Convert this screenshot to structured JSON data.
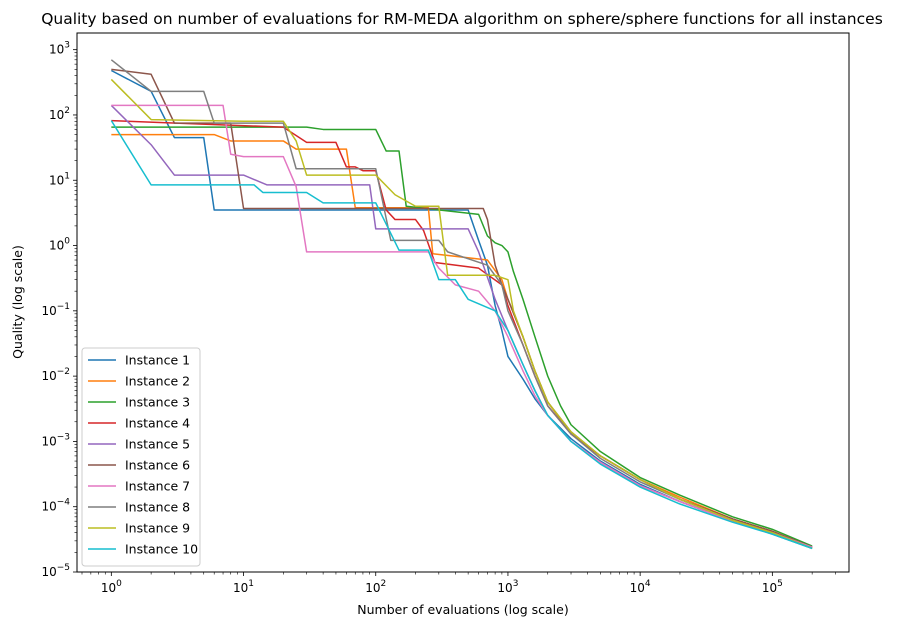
{
  "chart_data": {
    "type": "line",
    "title": "Quality based on number of evaluations for RM-MEDA algorithm on sphere/sphere functions for all instances",
    "xlabel": "Number of evaluations (log scale)",
    "ylabel": "Quality (log scale)",
    "xscale": "log",
    "yscale": "log",
    "xlim": [
      0.55,
      380000
    ],
    "ylim": [
      1e-05,
      1800
    ],
    "x_ticks": [
      {
        "value": 1,
        "base": "10",
        "exp": "0"
      },
      {
        "value": 10,
        "base": "10",
        "exp": "1"
      },
      {
        "value": 100,
        "base": "10",
        "exp": "2"
      },
      {
        "value": 1000,
        "base": "10",
        "exp": "3"
      },
      {
        "value": 10000,
        "base": "10",
        "exp": "4"
      },
      {
        "value": 100000,
        "base": "10",
        "exp": "5"
      }
    ],
    "y_ticks": [
      {
        "value": 1e-05,
        "base": "10",
        "exp": "−5"
      },
      {
        "value": 0.0001,
        "base": "10",
        "exp": "−4"
      },
      {
        "value": 0.001,
        "base": "10",
        "exp": "−3"
      },
      {
        "value": 0.01,
        "base": "10",
        "exp": "−2"
      },
      {
        "value": 0.1,
        "base": "10",
        "exp": "−1"
      },
      {
        "value": 1,
        "base": "10",
        "exp": "0"
      },
      {
        "value": 10,
        "base": "10",
        "exp": "1"
      },
      {
        "value": 100,
        "base": "10",
        "exp": "2"
      },
      {
        "value": 1000,
        "base": "10",
        "exp": "3"
      }
    ],
    "grid": false,
    "legend_position": "lower-left",
    "series": [
      {
        "name": "Instance 1",
        "color": "#1f77b4",
        "points": [
          [
            1,
            480
          ],
          [
            2,
            230
          ],
          [
            3,
            45
          ],
          [
            5,
            45
          ],
          [
            6,
            3.5
          ],
          [
            500,
            3.5
          ],
          [
            600,
            1.2
          ],
          [
            700,
            0.5
          ],
          [
            800,
            0.12
          ],
          [
            900,
            0.05
          ],
          [
            1000,
            0.02
          ],
          [
            1300,
            0.009
          ],
          [
            1600,
            0.0045
          ],
          [
            2000,
            0.0025
          ],
          [
            3000,
            0.0011
          ],
          [
            5000,
            0.0005
          ],
          [
            10000,
            0.00022
          ],
          [
            20000,
            0.00012
          ],
          [
            50000,
            6e-05
          ],
          [
            100000,
            3.8e-05
          ],
          [
            200000,
            2.3e-05
          ]
        ]
      },
      {
        "name": "Instance 2",
        "color": "#ff7f0e",
        "points": [
          [
            1,
            50
          ],
          [
            6,
            50
          ],
          [
            8,
            40
          ],
          [
            20,
            40
          ],
          [
            25,
            30
          ],
          [
            60,
            30
          ],
          [
            70,
            3.8
          ],
          [
            250,
            3.8
          ],
          [
            270,
            0.75
          ],
          [
            700,
            0.6
          ],
          [
            900,
            0.3
          ],
          [
            1000,
            0.15
          ],
          [
            1300,
            0.04
          ],
          [
            1600,
            0.012
          ],
          [
            2000,
            0.004
          ],
          [
            3000,
            0.0013
          ],
          [
            5000,
            0.0006
          ],
          [
            10000,
            0.00026
          ],
          [
            20000,
            0.00014
          ],
          [
            50000,
            6.5e-05
          ],
          [
            100000,
            4.2e-05
          ],
          [
            200000,
            2.4e-05
          ]
        ]
      },
      {
        "name": "Instance 3",
        "color": "#2ca02c",
        "points": [
          [
            1,
            65
          ],
          [
            30,
            65
          ],
          [
            40,
            60
          ],
          [
            100,
            60
          ],
          [
            120,
            28
          ],
          [
            150,
            28
          ],
          [
            170,
            4
          ],
          [
            600,
            3
          ],
          [
            700,
            1.4
          ],
          [
            800,
            1.1
          ],
          [
            900,
            1.0
          ],
          [
            1000,
            0.8
          ],
          [
            1100,
            0.4
          ],
          [
            1300,
            0.15
          ],
          [
            1600,
            0.04
          ],
          [
            2000,
            0.01
          ],
          [
            2500,
            0.0035
          ],
          [
            3000,
            0.0018
          ],
          [
            5000,
            0.0007
          ],
          [
            10000,
            0.00028
          ],
          [
            20000,
            0.00015
          ],
          [
            50000,
            7e-05
          ],
          [
            100000,
            4.5e-05
          ],
          [
            200000,
            2.5e-05
          ]
        ]
      },
      {
        "name": "Instance 4",
        "color": "#d62728",
        "points": [
          [
            1,
            82
          ],
          [
            20,
            65
          ],
          [
            30,
            38
          ],
          [
            50,
            38
          ],
          [
            60,
            16
          ],
          [
            70,
            16
          ],
          [
            80,
            14
          ],
          [
            100,
            14
          ],
          [
            120,
            3.5
          ],
          [
            140,
            2.5
          ],
          [
            200,
            2.5
          ],
          [
            230,
            1.7
          ],
          [
            280,
            0.55
          ],
          [
            600,
            0.45
          ],
          [
            900,
            0.25
          ],
          [
            1000,
            0.12
          ],
          [
            1300,
            0.03
          ],
          [
            1600,
            0.01
          ],
          [
            2000,
            0.0035
          ],
          [
            3000,
            0.0013
          ],
          [
            5000,
            0.0006
          ],
          [
            10000,
            0.00026
          ],
          [
            20000,
            0.00013
          ],
          [
            50000,
            6.5e-05
          ],
          [
            100000,
            4.2e-05
          ],
          [
            200000,
            2.4e-05
          ]
        ]
      },
      {
        "name": "Instance 5",
        "color": "#9467bd",
        "points": [
          [
            1,
            140
          ],
          [
            2,
            35
          ],
          [
            3,
            12
          ],
          [
            10,
            12
          ],
          [
            15,
            8.5
          ],
          [
            90,
            8.5
          ],
          [
            100,
            1.8
          ],
          [
            500,
            1.8
          ],
          [
            600,
            0.8
          ],
          [
            800,
            0.15
          ],
          [
            1000,
            0.05
          ],
          [
            1300,
            0.015
          ],
          [
            1600,
            0.006
          ],
          [
            2000,
            0.0025
          ],
          [
            3000,
            0.001
          ],
          [
            5000,
            0.00048
          ],
          [
            10000,
            0.00021
          ],
          [
            20000,
            0.00012
          ],
          [
            50000,
            6e-05
          ],
          [
            100000,
            4e-05
          ],
          [
            200000,
            2.4e-05
          ]
        ]
      },
      {
        "name": "Instance 6",
        "color": "#8c564b",
        "points": [
          [
            1,
            500
          ],
          [
            2,
            420
          ],
          [
            3,
            75
          ],
          [
            8,
            75
          ],
          [
            10,
            3.7
          ],
          [
            650,
            3.7
          ],
          [
            700,
            2.5
          ],
          [
            800,
            0.5
          ],
          [
            900,
            0.25
          ],
          [
            1000,
            0.15
          ],
          [
            1300,
            0.04
          ],
          [
            1600,
            0.012
          ],
          [
            2000,
            0.004
          ],
          [
            3000,
            0.0014
          ],
          [
            5000,
            0.0006
          ],
          [
            10000,
            0.00026
          ],
          [
            20000,
            0.00013
          ],
          [
            50000,
            6.5e-05
          ],
          [
            100000,
            4.2e-05
          ],
          [
            200000,
            2.4e-05
          ]
        ]
      },
      {
        "name": "Instance 7",
        "color": "#e377c2",
        "points": [
          [
            1,
            140
          ],
          [
            7,
            140
          ],
          [
            8,
            25
          ],
          [
            10,
            23
          ],
          [
            20,
            23
          ],
          [
            25,
            8
          ],
          [
            30,
            0.8
          ],
          [
            250,
            0.8
          ],
          [
            300,
            0.45
          ],
          [
            400,
            0.25
          ],
          [
            600,
            0.2
          ],
          [
            800,
            0.1
          ],
          [
            1000,
            0.04
          ],
          [
            1300,
            0.012
          ],
          [
            1600,
            0.005
          ],
          [
            2000,
            0.0025
          ],
          [
            3000,
            0.001
          ],
          [
            5000,
            0.00048
          ],
          [
            10000,
            0.00021
          ],
          [
            20000,
            0.00012
          ],
          [
            50000,
            6e-05
          ],
          [
            100000,
            4e-05
          ],
          [
            200000,
            2.4e-05
          ]
        ]
      },
      {
        "name": "Instance 8",
        "color": "#7f7f7f",
        "points": [
          [
            1,
            700
          ],
          [
            2,
            230
          ],
          [
            5,
            230
          ],
          [
            6,
            75
          ],
          [
            20,
            75
          ],
          [
            25,
            15
          ],
          [
            100,
            15
          ],
          [
            130,
            1.2
          ],
          [
            300,
            1.2
          ],
          [
            350,
            0.8
          ],
          [
            700,
            0.5
          ],
          [
            900,
            0.25
          ],
          [
            1000,
            0.1
          ],
          [
            1300,
            0.03
          ],
          [
            1600,
            0.01
          ],
          [
            2000,
            0.0035
          ],
          [
            3000,
            0.0013
          ],
          [
            5000,
            0.00055
          ],
          [
            10000,
            0.00024
          ],
          [
            20000,
            0.00013
          ],
          [
            50000,
            6.2e-05
          ],
          [
            100000,
            4e-05
          ],
          [
            200000,
            2.3e-05
          ]
        ]
      },
      {
        "name": "Instance 9",
        "color": "#bcbd22",
        "points": [
          [
            1,
            350
          ],
          [
            2,
            85
          ],
          [
            10,
            80
          ],
          [
            20,
            80
          ],
          [
            25,
            40
          ],
          [
            30,
            12
          ],
          [
            100,
            12
          ],
          [
            140,
            6
          ],
          [
            200,
            4
          ],
          [
            300,
            4
          ],
          [
            350,
            0.35
          ],
          [
            800,
            0.35
          ],
          [
            1000,
            0.3
          ],
          [
            1100,
            0.1
          ],
          [
            1300,
            0.04
          ],
          [
            1600,
            0.012
          ],
          [
            2000,
            0.004
          ],
          [
            3000,
            0.0014
          ],
          [
            5000,
            0.0006
          ],
          [
            10000,
            0.00026
          ],
          [
            20000,
            0.00013
          ],
          [
            50000,
            6.2e-05
          ],
          [
            100000,
            4e-05
          ],
          [
            200000,
            2.3e-05
          ]
        ]
      },
      {
        "name": "Instance 10",
        "color": "#17becf",
        "points": [
          [
            1,
            82
          ],
          [
            2,
            8.5
          ],
          [
            12,
            8.5
          ],
          [
            14,
            6.5
          ],
          [
            30,
            6.5
          ],
          [
            40,
            4.5
          ],
          [
            100,
            4.5
          ],
          [
            150,
            0.85
          ],
          [
            250,
            0.85
          ],
          [
            300,
            0.3
          ],
          [
            400,
            0.3
          ],
          [
            500,
            0.15
          ],
          [
            800,
            0.1
          ],
          [
            1000,
            0.05
          ],
          [
            1300,
            0.015
          ],
          [
            1600,
            0.006
          ],
          [
            2000,
            0.0025
          ],
          [
            3000,
            0.001
          ],
          [
            5000,
            0.00045
          ],
          [
            10000,
            0.0002
          ],
          [
            20000,
            0.00011
          ],
          [
            50000,
            5.8e-05
          ],
          [
            100000,
            3.8e-05
          ],
          [
            200000,
            2.3e-05
          ]
        ]
      }
    ]
  }
}
